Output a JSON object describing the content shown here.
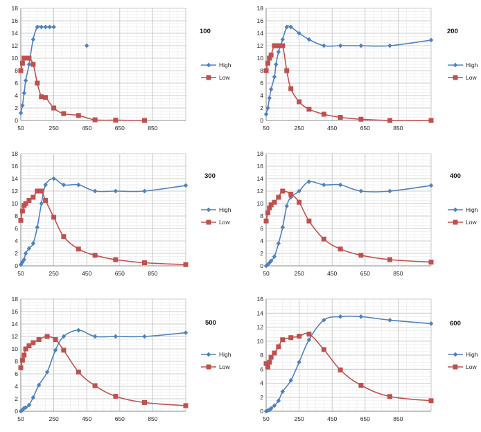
{
  "legend_labels": [
    "High",
    "Low"
  ],
  "chart_data": [
    {
      "type": "line",
      "title": "100",
      "xlim": [
        50,
        1050
      ],
      "ylim": [
        0,
        18
      ],
      "xticks": [
        50,
        250,
        450,
        650,
        850
      ],
      "yticks": [
        0,
        2,
        4,
        6,
        8,
        10,
        12,
        14,
        16,
        18
      ],
      "legend": "right",
      "series": [
        {
          "name": "High",
          "color": "#4f81bd",
          "marker": "diamond",
          "segments": [
            [
              [
                50,
                1.2
              ],
              [
                60,
                2.4
              ],
              [
                70,
                4.4
              ],
              [
                80,
                6.4
              ],
              [
                100,
                9
              ],
              [
                125,
                13
              ],
              [
                150,
                15
              ],
              [
                175,
                15
              ],
              [
                200,
                15
              ],
              [
                225,
                15
              ],
              [
                250,
                15
              ]
            ],
            [
              [
                450,
                12
              ]
            ]
          ]
        },
        {
          "name": "Low",
          "color": "#c0504d",
          "marker": "square",
          "segments": [
            [
              [
                50,
                8
              ],
              [
                60,
                9.2
              ],
              [
                70,
                10
              ],
              [
                80,
                10
              ],
              [
                100,
                10
              ],
              [
                125,
                9
              ],
              [
                150,
                6
              ],
              [
                175,
                3.8
              ],
              [
                200,
                3.7
              ],
              [
                250,
                2
              ],
              [
                310,
                1.1
              ],
              [
                400,
                0.8
              ],
              [
                500,
                0.1
              ],
              [
                625,
                0.05
              ],
              [
                800,
                0
              ]
            ]
          ]
        }
      ]
    },
    {
      "type": "line",
      "title": "200",
      "xlim": [
        50,
        1050
      ],
      "ylim": [
        0,
        18
      ],
      "xticks": [
        50,
        250,
        450,
        650,
        850
      ],
      "yticks": [
        0,
        2,
        4,
        6,
        8,
        10,
        12,
        14,
        16,
        18
      ],
      "legend": "right",
      "series": [
        {
          "name": "High",
          "color": "#4f81bd",
          "marker": "diamond",
          "segments": [
            [
              [
                50,
                1
              ],
              [
                60,
                2
              ],
              [
                70,
                3.6
              ],
              [
                80,
                5
              ],
              [
                100,
                7
              ],
              [
                110,
                9
              ],
              [
                125,
                11
              ],
              [
                150,
                13
              ],
              [
                175,
                15
              ],
              [
                200,
                15
              ],
              [
                250,
                14
              ],
              [
                310,
                13
              ],
              [
                400,
                12
              ],
              [
                500,
                12
              ],
              [
                625,
                12
              ],
              [
                800,
                12
              ],
              [
                1050,
                12.9
              ]
            ]
          ]
        },
        {
          "name": "Low",
          "color": "#c0504d",
          "marker": "square",
          "segments": [
            [
              [
                50,
                8
              ],
              [
                60,
                9.2
              ],
              [
                70,
                10
              ],
              [
                80,
                10.5
              ],
              [
                100,
                12
              ],
              [
                125,
                12
              ],
              [
                150,
                12
              ],
              [
                175,
                8
              ],
              [
                200,
                5.1
              ],
              [
                250,
                3
              ],
              [
                310,
                1.8
              ],
              [
                400,
                1
              ],
              [
                500,
                0.5
              ],
              [
                625,
                0.2
              ],
              [
                800,
                0
              ],
              [
                1050,
                0
              ]
            ]
          ]
        }
      ]
    },
    {
      "type": "line",
      "title": "300",
      "xlim": [
        50,
        1050
      ],
      "ylim": [
        0,
        18
      ],
      "xticks": [
        50,
        250,
        450,
        650,
        850
      ],
      "yticks": [
        0,
        2,
        4,
        6,
        8,
        10,
        12,
        14,
        16,
        18
      ],
      "legend": "right",
      "series": [
        {
          "name": "High",
          "color": "#4f81bd",
          "marker": "diamond",
          "segments": [
            [
              [
                50,
                0.2
              ],
              [
                60,
                0.6
              ],
              [
                70,
                1
              ],
              [
                80,
                2
              ],
              [
                100,
                2.8
              ],
              [
                125,
                3.6
              ],
              [
                150,
                6.2
              ],
              [
                175,
                10
              ],
              [
                200,
                13
              ],
              [
                250,
                14
              ],
              [
                310,
                13
              ],
              [
                400,
                13
              ],
              [
                500,
                12
              ],
              [
                625,
                12
              ],
              [
                800,
                12
              ],
              [
                1050,
                12.9
              ]
            ]
          ]
        },
        {
          "name": "Low",
          "color": "#c0504d",
          "marker": "square",
          "segments": [
            [
              [
                50,
                7.3
              ],
              [
                60,
                8.8
              ],
              [
                70,
                9.7
              ],
              [
                80,
                10
              ],
              [
                100,
                10.5
              ],
              [
                125,
                11
              ],
              [
                150,
                12
              ],
              [
                175,
                12
              ],
              [
                200,
                10.5
              ],
              [
                250,
                7.8
              ],
              [
                310,
                4.7
              ],
              [
                400,
                2.7
              ],
              [
                500,
                1.7
              ],
              [
                625,
                1
              ],
              [
                800,
                0.5
              ],
              [
                1050,
                0.2
              ]
            ]
          ]
        }
      ]
    },
    {
      "type": "line",
      "title": "400",
      "xlim": [
        50,
        1050
      ],
      "ylim": [
        0,
        18
      ],
      "xticks": [
        50,
        250,
        450,
        650,
        850
      ],
      "yticks": [
        0,
        2,
        4,
        6,
        8,
        10,
        12,
        14,
        16,
        18
      ],
      "legend": "right",
      "series": [
        {
          "name": "High",
          "color": "#4f81bd",
          "marker": "diamond",
          "segments": [
            [
              [
                50,
                0
              ],
              [
                60,
                0.2
              ],
              [
                70,
                0.5
              ],
              [
                80,
                0.8
              ],
              [
                100,
                1.5
              ],
              [
                125,
                3.6
              ],
              [
                150,
                6.2
              ],
              [
                175,
                9.6
              ],
              [
                200,
                11
              ],
              [
                250,
                12
              ],
              [
                310,
                13.5
              ],
              [
                400,
                13
              ],
              [
                500,
                13
              ],
              [
                625,
                12
              ],
              [
                800,
                12
              ],
              [
                1050,
                12.9
              ]
            ]
          ]
        },
        {
          "name": "Low",
          "color": "#c0504d",
          "marker": "square",
          "segments": [
            [
              [
                50,
                7.2
              ],
              [
                60,
                8.5
              ],
              [
                70,
                9.3
              ],
              [
                80,
                9.8
              ],
              [
                100,
                10.2
              ],
              [
                125,
                11
              ],
              [
                150,
                12
              ],
              [
                200,
                11.5
              ],
              [
                250,
                10.2
              ],
              [
                310,
                7.2
              ],
              [
                400,
                4.3
              ],
              [
                500,
                2.7
              ],
              [
                625,
                1.7
              ],
              [
                800,
                1
              ],
              [
                1050,
                0.6
              ]
            ]
          ]
        }
      ]
    },
    {
      "type": "line",
      "title": "500",
      "xlim": [
        50,
        1050
      ],
      "ylim": [
        0,
        18
      ],
      "xticks": [
        50,
        250,
        450,
        650,
        850
      ],
      "yticks": [
        0,
        2,
        4,
        6,
        8,
        10,
        12,
        14,
        16,
        18
      ],
      "legend": "right",
      "series": [
        {
          "name": "High",
          "color": "#4f81bd",
          "marker": "diamond",
          "segments": [
            [
              [
                50,
                0
              ],
              [
                60,
                0.2
              ],
              [
                70,
                0.5
              ],
              [
                80,
                0.6
              ],
              [
                100,
                1
              ],
              [
                125,
                2.2
              ],
              [
                160,
                4.2
              ],
              [
                210,
                6.3
              ],
              [
                260,
                9.8
              ],
              [
                310,
                12
              ],
              [
                400,
                13
              ],
              [
                500,
                12
              ],
              [
                625,
                12
              ],
              [
                800,
                12
              ],
              [
                1050,
                12.6
              ]
            ]
          ]
        },
        {
          "name": "Low",
          "color": "#c0504d",
          "marker": "square",
          "segments": [
            [
              [
                50,
                7
              ],
              [
                60,
                8.2
              ],
              [
                70,
                9
              ],
              [
                80,
                10
              ],
              [
                100,
                10.5
              ],
              [
                125,
                11
              ],
              [
                160,
                11.5
              ],
              [
                210,
                12
              ],
              [
                260,
                11.5
              ],
              [
                310,
                9.8
              ],
              [
                400,
                6.3
              ],
              [
                500,
                4.1
              ],
              [
                625,
                2.4
              ],
              [
                800,
                1.4
              ],
              [
                1050,
                0.9
              ]
            ]
          ]
        }
      ]
    },
    {
      "type": "line",
      "title": "600",
      "xlim": [
        50,
        1050
      ],
      "ylim": [
        0,
        16
      ],
      "xticks": [
        50,
        250,
        450,
        650,
        850
      ],
      "yticks": [
        0,
        2,
        4,
        6,
        8,
        10,
        12,
        14,
        16
      ],
      "legend": "right",
      "series": [
        {
          "name": "High",
          "color": "#4f81bd",
          "marker": "diamond",
          "segments": [
            [
              [
                50,
                0
              ],
              [
                60,
                0.1
              ],
              [
                70,
                0.2
              ],
              [
                80,
                0.4
              ],
              [
                100,
                0.8
              ],
              [
                125,
                1.5
              ],
              [
                150,
                2.8
              ],
              [
                200,
                4.4
              ],
              [
                250,
                7
              ],
              [
                310,
                10.2
              ],
              [
                400,
                13
              ],
              [
                500,
                13.5
              ],
              [
                625,
                13.5
              ],
              [
                800,
                13
              ],
              [
                1050,
                12.5
              ]
            ]
          ]
        },
        {
          "name": "Low",
          "color": "#c0504d",
          "marker": "square",
          "segments": [
            [
              [
                50,
                6.8
              ],
              [
                60,
                6.3
              ],
              [
                70,
                7
              ],
              [
                80,
                7.7
              ],
              [
                100,
                8.3
              ],
              [
                125,
                9.2
              ],
              [
                150,
                10.2
              ],
              [
                200,
                10.5
              ],
              [
                250,
                10.7
              ],
              [
                310,
                11
              ],
              [
                400,
                8.8
              ],
              [
                500,
                5.9
              ],
              [
                625,
                3.7
              ],
              [
                800,
                2.1
              ],
              [
                1050,
                1.5
              ]
            ]
          ]
        }
      ]
    }
  ]
}
